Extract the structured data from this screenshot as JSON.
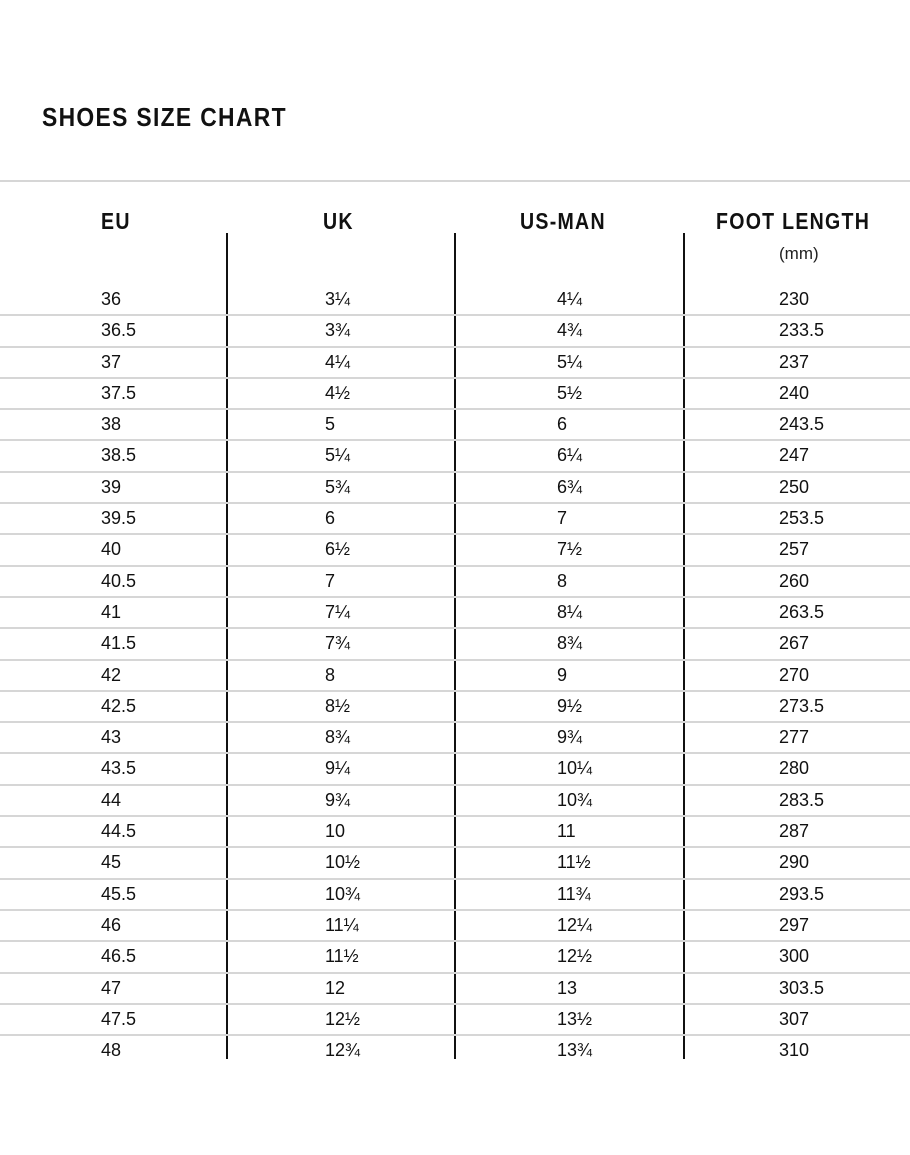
{
  "title": "SHOES SIZE CHART",
  "headers": {
    "eu": "EU",
    "uk": "UK",
    "us": "US-MAN",
    "foot": "FOOT LENGTH",
    "foot_unit": "(mm)"
  },
  "rows": [
    [
      "36",
      "3¼",
      "4¼",
      "230"
    ],
    [
      "36.5",
      "3¾",
      "4¾",
      "233.5"
    ],
    [
      "37",
      "4¼",
      "5¼",
      "237"
    ],
    [
      "37.5",
      "4½",
      "5½",
      "240"
    ],
    [
      "38",
      "5",
      "6",
      "243.5"
    ],
    [
      "38.5",
      "5¼",
      "6¼",
      "247"
    ],
    [
      "39",
      "5¾",
      "6¾",
      "250"
    ],
    [
      "39.5",
      "6",
      "7",
      "253.5"
    ],
    [
      "40",
      "6½",
      "7½",
      "257"
    ],
    [
      "40.5",
      "7",
      "8",
      "260"
    ],
    [
      "41",
      "7¼",
      "8¼",
      "263.5"
    ],
    [
      "41.5",
      "7¾",
      "8¾",
      "267"
    ],
    [
      "42",
      "8",
      "9",
      "270"
    ],
    [
      "42.5",
      "8½",
      "9½",
      "273.5"
    ],
    [
      "43",
      "8¾",
      "9¾",
      "277"
    ],
    [
      "43.5",
      "9¼",
      "10¼",
      "280"
    ],
    [
      "44",
      "9¾",
      "10¾",
      "283.5"
    ],
    [
      "44.5",
      "10",
      "11",
      "287"
    ],
    [
      "45",
      "10½",
      "11½",
      "290"
    ],
    [
      "45.5",
      "10¾",
      "11¾",
      "293.5"
    ],
    [
      "46",
      "11¼",
      "12¼",
      "297"
    ],
    [
      "46.5",
      "11½",
      "12½",
      "300"
    ],
    [
      "47",
      "12",
      "13",
      "303.5"
    ],
    [
      "47.5",
      "12½",
      "13½",
      "307"
    ],
    [
      "48",
      "12¾",
      "13¾",
      "310"
    ]
  ]
}
